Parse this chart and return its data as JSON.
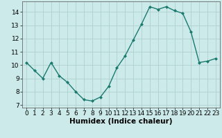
{
  "x": [
    0,
    1,
    2,
    3,
    4,
    5,
    6,
    7,
    8,
    9,
    10,
    11,
    12,
    13,
    14,
    15,
    16,
    17,
    18,
    19,
    20,
    21,
    22,
    23
  ],
  "y": [
    10.2,
    9.6,
    9.0,
    10.2,
    9.2,
    8.7,
    8.0,
    7.4,
    7.3,
    7.6,
    8.4,
    9.8,
    10.7,
    11.9,
    13.1,
    14.4,
    14.2,
    14.4,
    14.1,
    13.9,
    12.5,
    10.2,
    10.3,
    10.5
  ],
  "line_color": "#1a7a6e",
  "marker": "D",
  "marker_size": 2.0,
  "bg_color": "#cceaea",
  "grid_color": "#b0d0d0",
  "xlabel": "Humidex (Indice chaleur)",
  "ylim": [
    6.8,
    14.8
  ],
  "xlim": [
    -0.5,
    23.5
  ],
  "yticks": [
    7,
    8,
    9,
    10,
    11,
    12,
    13,
    14
  ],
  "xticks": [
    0,
    1,
    2,
    3,
    4,
    5,
    6,
    7,
    8,
    9,
    10,
    11,
    12,
    13,
    14,
    15,
    16,
    17,
    18,
    19,
    20,
    21,
    22,
    23
  ],
  "xlabel_fontsize": 7.5,
  "tick_fontsize": 6.5,
  "linewidth": 1.0
}
